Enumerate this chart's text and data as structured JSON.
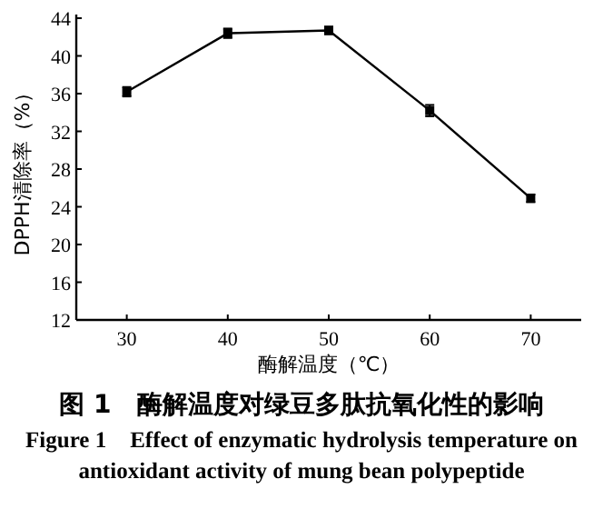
{
  "chart_data": {
    "type": "line",
    "title": "图 1　酶解温度对绿豆多肽抗氧化性的影响",
    "subtitle": "Figure 1　Effect of enzymatic hydrolysis temperature on antioxidant activity of mung bean polypeptide",
    "xlabel": "酶解温度（℃）",
    "ylabel": "DPPH清除率（%）",
    "x": [
      30,
      40,
      50,
      60,
      70
    ],
    "series": [
      {
        "color": "#000000",
        "values": [
          36.2,
          42.4,
          42.7,
          34.2,
          24.9
        ],
        "errors": [
          0.5,
          0.5,
          0.4,
          0.6,
          0.4
        ]
      }
    ],
    "xlim": [
      25,
      75
    ],
    "xticks": [
      30,
      40,
      50,
      60,
      70
    ],
    "ylim": [
      12,
      44
    ],
    "yticks": [
      12,
      16,
      20,
      24,
      28,
      32,
      36,
      40,
      44
    ],
    "marker": "square",
    "line_style": "solid"
  }
}
